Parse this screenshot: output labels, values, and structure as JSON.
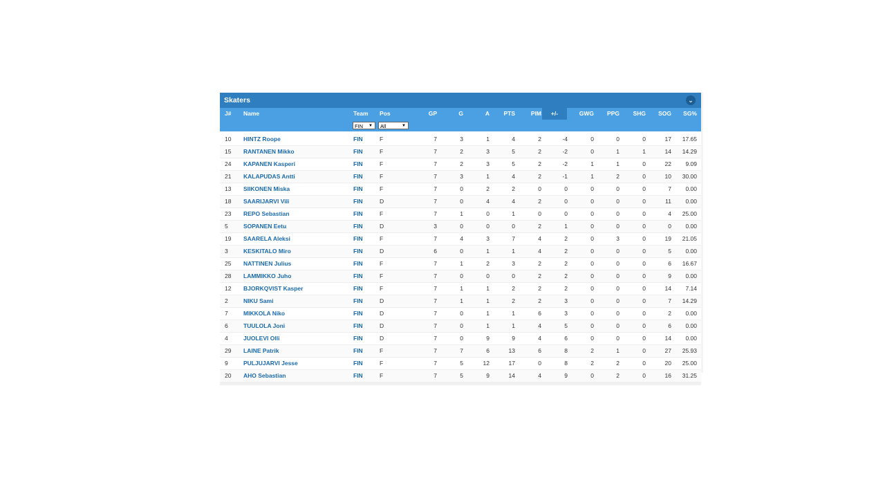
{
  "panel": {
    "title": "Skaters",
    "collapse_icon": "chevron-down-icon"
  },
  "headers": {
    "j": "J#",
    "name": "Name",
    "team": "Team",
    "pos": "Pos",
    "gp": "GP",
    "g": "G",
    "a": "A",
    "pts": "PTS",
    "pim": "PIM",
    "pm": "+/-",
    "gwg": "GWG",
    "ppg": "PPG",
    "shg": "SHG",
    "sog": "SOG",
    "sgp": "SG%"
  },
  "filters": {
    "team": "FIN",
    "pos": "All"
  },
  "colors": {
    "title_bar": "#2f7fc0",
    "header_bar": "#4aa0e2",
    "link": "#1a6aad"
  },
  "rows": [
    {
      "j": "10",
      "name": "HINTZ Roope",
      "team": "FIN",
      "pos": "F",
      "gp": "7",
      "g": "3",
      "a": "1",
      "pts": "4",
      "pim": "2",
      "pm": "-4",
      "gwg": "0",
      "ppg": "0",
      "shg": "0",
      "sog": "17",
      "sgp": "17.65"
    },
    {
      "j": "15",
      "name": "RANTANEN Mikko",
      "team": "FIN",
      "pos": "F",
      "gp": "7",
      "g": "2",
      "a": "3",
      "pts": "5",
      "pim": "2",
      "pm": "-2",
      "gwg": "0",
      "ppg": "1",
      "shg": "1",
      "sog": "14",
      "sgp": "14.29"
    },
    {
      "j": "24",
      "name": "KAPANEN Kasperi",
      "team": "FIN",
      "pos": "F",
      "gp": "7",
      "g": "2",
      "a": "3",
      "pts": "5",
      "pim": "2",
      "pm": "-2",
      "gwg": "1",
      "ppg": "1",
      "shg": "0",
      "sog": "22",
      "sgp": "9.09"
    },
    {
      "j": "21",
      "name": "KALAPUDAS Antti",
      "team": "FIN",
      "pos": "F",
      "gp": "7",
      "g": "3",
      "a": "1",
      "pts": "4",
      "pim": "2",
      "pm": "-1",
      "gwg": "1",
      "ppg": "2",
      "shg": "0",
      "sog": "10",
      "sgp": "30.00"
    },
    {
      "j": "13",
      "name": "SIIKONEN Miska",
      "team": "FIN",
      "pos": "F",
      "gp": "7",
      "g": "0",
      "a": "2",
      "pts": "2",
      "pim": "0",
      "pm": "0",
      "gwg": "0",
      "ppg": "0",
      "shg": "0",
      "sog": "7",
      "sgp": "0.00"
    },
    {
      "j": "18",
      "name": "SAARIJARVI Vili",
      "team": "FIN",
      "pos": "D",
      "gp": "7",
      "g": "0",
      "a": "4",
      "pts": "4",
      "pim": "2",
      "pm": "0",
      "gwg": "0",
      "ppg": "0",
      "shg": "0",
      "sog": "11",
      "sgp": "0.00"
    },
    {
      "j": "23",
      "name": "REPO Sebastian",
      "team": "FIN",
      "pos": "F",
      "gp": "7",
      "g": "1",
      "a": "0",
      "pts": "1",
      "pim": "0",
      "pm": "0",
      "gwg": "0",
      "ppg": "0",
      "shg": "0",
      "sog": "4",
      "sgp": "25.00"
    },
    {
      "j": "5",
      "name": "SOPANEN Eetu",
      "team": "FIN",
      "pos": "D",
      "gp": "3",
      "g": "0",
      "a": "0",
      "pts": "0",
      "pim": "2",
      "pm": "1",
      "gwg": "0",
      "ppg": "0",
      "shg": "0",
      "sog": "0",
      "sgp": "0.00"
    },
    {
      "j": "19",
      "name": "SAARELA Aleksi",
      "team": "FIN",
      "pos": "F",
      "gp": "7",
      "g": "4",
      "a": "3",
      "pts": "7",
      "pim": "4",
      "pm": "2",
      "gwg": "0",
      "ppg": "3",
      "shg": "0",
      "sog": "19",
      "sgp": "21.05"
    },
    {
      "j": "3",
      "name": "KESKITALO Miro",
      "team": "FIN",
      "pos": "D",
      "gp": "6",
      "g": "0",
      "a": "1",
      "pts": "1",
      "pim": "4",
      "pm": "2",
      "gwg": "0",
      "ppg": "0",
      "shg": "0",
      "sog": "5",
      "sgp": "0.00"
    },
    {
      "j": "25",
      "name": "NATTINEN Julius",
      "team": "FIN",
      "pos": "F",
      "gp": "7",
      "g": "1",
      "a": "2",
      "pts": "3",
      "pim": "2",
      "pm": "2",
      "gwg": "0",
      "ppg": "0",
      "shg": "0",
      "sog": "6",
      "sgp": "16.67"
    },
    {
      "j": "28",
      "name": "LAMMIKKO Juho",
      "team": "FIN",
      "pos": "F",
      "gp": "7",
      "g": "0",
      "a": "0",
      "pts": "0",
      "pim": "2",
      "pm": "2",
      "gwg": "0",
      "ppg": "0",
      "shg": "0",
      "sog": "9",
      "sgp": "0.00"
    },
    {
      "j": "12",
      "name": "BJORKQVIST Kasper",
      "team": "FIN",
      "pos": "F",
      "gp": "7",
      "g": "1",
      "a": "1",
      "pts": "2",
      "pim": "2",
      "pm": "2",
      "gwg": "0",
      "ppg": "0",
      "shg": "0",
      "sog": "14",
      "sgp": "7.14"
    },
    {
      "j": "2",
      "name": "NIKU Sami",
      "team": "FIN",
      "pos": "D",
      "gp": "7",
      "g": "1",
      "a": "1",
      "pts": "2",
      "pim": "2",
      "pm": "3",
      "gwg": "0",
      "ppg": "0",
      "shg": "0",
      "sog": "7",
      "sgp": "14.29"
    },
    {
      "j": "7",
      "name": "MIKKOLA Niko",
      "team": "FIN",
      "pos": "D",
      "gp": "7",
      "g": "0",
      "a": "1",
      "pts": "1",
      "pim": "6",
      "pm": "3",
      "gwg": "0",
      "ppg": "0",
      "shg": "0",
      "sog": "2",
      "sgp": "0.00"
    },
    {
      "j": "6",
      "name": "TUULOLA Joni",
      "team": "FIN",
      "pos": "D",
      "gp": "7",
      "g": "0",
      "a": "1",
      "pts": "1",
      "pim": "4",
      "pm": "5",
      "gwg": "0",
      "ppg": "0",
      "shg": "0",
      "sog": "6",
      "sgp": "0.00"
    },
    {
      "j": "4",
      "name": "JUOLEVI Olli",
      "team": "FIN",
      "pos": "D",
      "gp": "7",
      "g": "0",
      "a": "9",
      "pts": "9",
      "pim": "4",
      "pm": "6",
      "gwg": "0",
      "ppg": "0",
      "shg": "0",
      "sog": "14",
      "sgp": "0.00"
    },
    {
      "j": "29",
      "name": "LAINE Patrik",
      "team": "FIN",
      "pos": "F",
      "gp": "7",
      "g": "7",
      "a": "6",
      "pts": "13",
      "pim": "6",
      "pm": "8",
      "gwg": "2",
      "ppg": "1",
      "shg": "0",
      "sog": "27",
      "sgp": "25.93"
    },
    {
      "j": "9",
      "name": "PULJUJARVI Jesse",
      "team": "FIN",
      "pos": "F",
      "gp": "7",
      "g": "5",
      "a": "12",
      "pts": "17",
      "pim": "0",
      "pm": "8",
      "gwg": "2",
      "ppg": "2",
      "shg": "0",
      "sog": "20",
      "sgp": "25.00"
    },
    {
      "j": "20",
      "name": "AHO Sebastian",
      "team": "FIN",
      "pos": "F",
      "gp": "7",
      "g": "5",
      "a": "9",
      "pts": "14",
      "pim": "4",
      "pm": "9",
      "gwg": "0",
      "ppg": "2",
      "shg": "0",
      "sog": "16",
      "sgp": "31.25"
    }
  ]
}
